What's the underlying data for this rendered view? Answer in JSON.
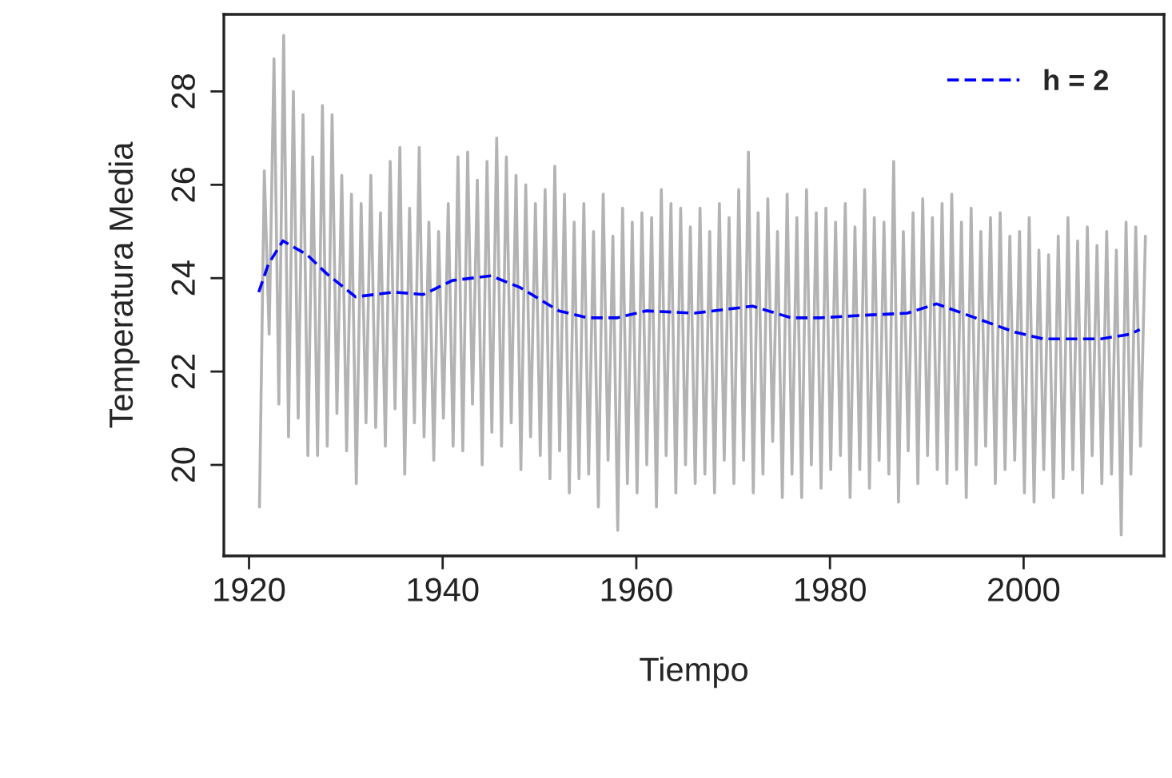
{
  "chart_data": {
    "type": "line",
    "xlabel": "Tiempo",
    "ylabel": "Temperatura Media",
    "xlim": [
      1917.4,
      2014.5
    ],
    "ylim": [
      18.05,
      29.65
    ],
    "xticks": [
      1920,
      1940,
      1960,
      1980,
      2000
    ],
    "yticks": [
      20,
      22,
      24,
      26,
      28
    ],
    "grid": false,
    "legend": "top right",
    "series": [
      {
        "color": "#b3b3b3",
        "line_style": "solid",
        "x": [
          1921.08,
          1921.58,
          1922.08,
          1922.58,
          1923.08,
          1923.58,
          1924.08,
          1924.58,
          1925.08,
          1925.58,
          1926.08,
          1926.58,
          1927.08,
          1927.58,
          1928.08,
          1928.58,
          1929.08,
          1929.58,
          1930.08,
          1930.58,
          1931.08,
          1931.58,
          1932.08,
          1932.58,
          1933.08,
          1933.58,
          1934.08,
          1934.58,
          1935.08,
          1935.58,
          1936.08,
          1936.58,
          1937.08,
          1937.58,
          1938.08,
          1938.58,
          1939.08,
          1939.58,
          1940.08,
          1940.58,
          1941.08,
          1941.58,
          1942.08,
          1942.58,
          1943.08,
          1943.58,
          1944.08,
          1944.58,
          1945.08,
          1945.58,
          1946.08,
          1946.58,
          1947.08,
          1947.58,
          1948.08,
          1948.58,
          1949.08,
          1949.58,
          1950.08,
          1950.58,
          1951.08,
          1951.58,
          1952.08,
          1952.58,
          1953.08,
          1953.58,
          1954.08,
          1954.58,
          1955.08,
          1955.58,
          1956.08,
          1956.58,
          1957.08,
          1957.58,
          1958.08,
          1958.58,
          1959.08,
          1959.58,
          1960.08,
          1960.58,
          1961.08,
          1961.58,
          1962.08,
          1962.58,
          1963.08,
          1963.58,
          1964.08,
          1964.58,
          1965.08,
          1965.58,
          1966.08,
          1966.58,
          1967.08,
          1967.58,
          1968.08,
          1968.58,
          1969.08,
          1969.58,
          1970.08,
          1970.58,
          1971.08,
          1971.58,
          1972.08,
          1972.58,
          1973.08,
          1973.58,
          1974.08,
          1974.58,
          1975.08,
          1975.58,
          1976.08,
          1976.58,
          1977.08,
          1977.58,
          1978.08,
          1978.58,
          1979.08,
          1979.58,
          1980.08,
          1980.58,
          1981.08,
          1981.58,
          1982.08,
          1982.58,
          1983.08,
          1983.58,
          1984.08,
          1984.58,
          1985.08,
          1985.58,
          1986.08,
          1986.58,
          1987.08,
          1987.58,
          1988.08,
          1988.58,
          1989.08,
          1989.58,
          1990.08,
          1990.58,
          1991.08,
          1991.58,
          1992.08,
          1992.58,
          1993.08,
          1993.58,
          1994.08,
          1994.58,
          1995.08,
          1995.58,
          1996.08,
          1996.58,
          1997.08,
          1997.58,
          1998.08,
          1998.58,
          1999.08,
          1999.58,
          2000.08,
          2000.58,
          2001.08,
          2001.58,
          2002.08,
          2002.58,
          2003.08,
          2003.58,
          2004.08,
          2004.58,
          2005.08,
          2005.58,
          2006.08,
          2006.58,
          2007.08,
          2007.58,
          2008.08,
          2008.58,
          2009.08,
          2009.58,
          2010.08,
          2010.58,
          2011.08,
          2011.58,
          2012.08,
          2012.58
        ],
        "values": [
          19.1,
          26.3,
          22.8,
          28.7,
          21.3,
          29.2,
          20.6,
          28.0,
          21.0,
          27.5,
          20.2,
          26.6,
          20.2,
          27.7,
          20.4,
          27.5,
          21.1,
          26.2,
          20.3,
          25.8,
          19.6,
          25.6,
          20.9,
          26.2,
          20.8,
          25.4,
          20.4,
          26.5,
          21.2,
          26.8,
          19.8,
          25.5,
          20.9,
          26.8,
          20.6,
          25.2,
          20.1,
          25.0,
          21.0,
          25.6,
          20.4,
          26.6,
          20.3,
          26.7,
          21.3,
          26.1,
          20.0,
          26.5,
          20.7,
          27.0,
          20.4,
          26.6,
          20.9,
          26.2,
          19.9,
          26.0,
          20.6,
          25.6,
          20.2,
          25.9,
          19.7,
          26.4,
          20.3,
          25.8,
          19.4,
          25.2,
          19.7,
          25.6,
          19.8,
          25.0,
          19.1,
          25.8,
          20.1,
          24.9,
          18.6,
          25.5,
          19.6,
          25.2,
          19.4,
          25.4,
          20.0,
          25.3,
          19.1,
          25.9,
          20.2,
          25.6,
          19.4,
          25.5,
          20.0,
          25.1,
          19.6,
          25.5,
          19.8,
          25.0,
          19.4,
          25.6,
          20.1,
          25.3,
          19.6,
          25.9,
          20.1,
          26.7,
          19.4,
          25.4,
          19.8,
          25.7,
          20.5,
          25.0,
          19.3,
          25.8,
          19.8,
          25.3,
          19.3,
          25.9,
          20.0,
          25.4,
          19.5,
          25.5,
          19.9,
          25.2,
          20.2,
          25.6,
          19.3,
          25.1,
          19.9,
          25.9,
          19.5,
          25.3,
          20.1,
          25.2,
          19.8,
          26.5,
          19.2,
          25.0,
          20.3,
          25.4,
          19.6,
          25.7,
          20.2,
          25.3,
          19.9,
          25.6,
          19.6,
          25.8,
          19.9,
          25.2,
          19.3,
          25.5,
          20.0,
          25.0,
          20.4,
          25.3,
          19.6,
          25.4,
          19.9,
          24.9,
          20.1,
          25.0,
          19.4,
          25.3,
          19.2,
          24.6,
          19.9,
          24.5,
          19.3,
          24.9,
          19.7,
          25.3,
          19.9,
          24.8,
          19.4,
          25.1,
          20.2,
          24.7,
          19.6,
          25.0,
          19.8,
          24.6,
          18.5,
          25.2,
          19.8,
          25.1,
          20.4,
          24.9
        ]
      },
      {
        "name": "h = 2",
        "color": "#0000ff",
        "line_style": "dashed",
        "x": [
          1921,
          1922,
          1923.5,
          1926,
          1928,
          1931,
          1935,
          1938,
          1941,
          1945,
          1948,
          1952,
          1955,
          1958,
          1961,
          1966,
          1972,
          1976,
          1979,
          1983,
          1988,
          1991,
          1995,
          1999,
          2002,
          2008,
          2011,
          2012
        ],
        "values": [
          23.7,
          24.3,
          24.8,
          24.5,
          24.1,
          23.6,
          23.7,
          23.65,
          23.95,
          24.05,
          23.8,
          23.3,
          23.15,
          23.15,
          23.3,
          23.25,
          23.4,
          23.15,
          23.15,
          23.2,
          23.25,
          23.45,
          23.15,
          22.85,
          22.7,
          22.7,
          22.8,
          22.9
        ]
      }
    ]
  }
}
